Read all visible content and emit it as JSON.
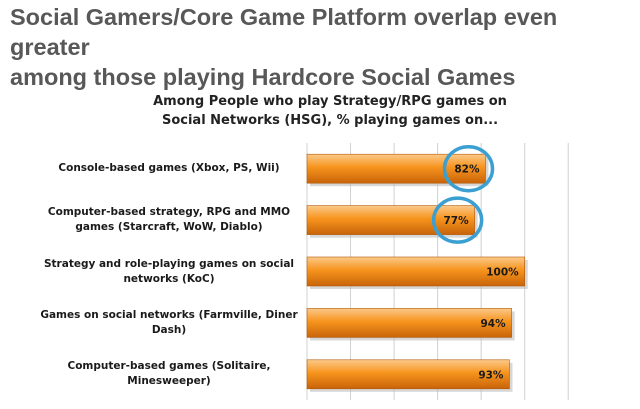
{
  "headline": {
    "line1": "Social Gamers/Core Game Platform overlap even greater",
    "line2": "among those playing Hardcore Social Games"
  },
  "chart_data": {
    "type": "bar",
    "orientation": "horizontal",
    "title_line1": "Among People who play Strategy/RPG games on",
    "title_line2": "Social Networks (HSG),  % playing games on...",
    "categories": [
      [
        "Console-based games (Xbox, PS, Wii)"
      ],
      [
        "Computer-based strategy, RPG and MMO",
        "games (Starcraft, WoW, Diablo)"
      ],
      [
        "Strategy and role-playing games on social",
        "networks (KoC)"
      ],
      [
        "Games on social networks (Farmville, Diner",
        "Dash)"
      ],
      [
        "Computer-based games (Solitaire,",
        "Minesweeper)"
      ]
    ],
    "values": [
      82,
      77,
      100,
      94,
      93
    ],
    "data_labels": [
      "82%",
      "77%",
      "100%",
      "94%",
      "93%"
    ],
    "highlighted": [
      true,
      true,
      false,
      false,
      false
    ],
    "xlim": [
      0,
      130
    ],
    "grid": true,
    "colors": {
      "bar_light": "#fbc98a",
      "bar_mid": "#f7941d",
      "bar_dark": "#c8640a",
      "highlight_circle": "#3b9fd1",
      "grid": "#d0d0d0"
    }
  }
}
